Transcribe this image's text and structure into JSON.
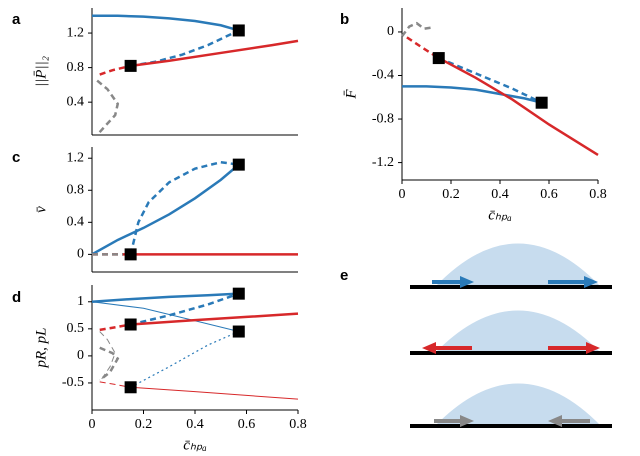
{
  "chart_data": [
    {
      "type": "line",
      "label": "a",
      "ylabel": "||P̄||₂",
      "xlim": [
        0,
        0.8
      ],
      "ylim": [
        0.02,
        1.49
      ],
      "yticks": [
        0.4,
        0.8,
        1.2
      ],
      "series": [
        {
          "color": "#2a7ab8",
          "dash": "solid",
          "width": 2.5,
          "x": [
            0,
            0.1,
            0.2,
            0.3,
            0.4,
            0.5,
            0.57
          ],
          "values": [
            1.4,
            1.4,
            1.39,
            1.37,
            1.34,
            1.29,
            1.23
          ]
        },
        {
          "color": "#2a7ab8",
          "dash": "dashed",
          "width": 2.5,
          "x": [
            0.15,
            0.25,
            0.35,
            0.45,
            0.57
          ],
          "values": [
            0.82,
            0.87,
            0.95,
            1.06,
            1.23
          ]
        },
        {
          "color": "#d7282a",
          "dash": "solid",
          "width": 2.5,
          "x": [
            0.15,
            0.3,
            0.5,
            0.7,
            0.8
          ],
          "values": [
            0.82,
            0.88,
            0.97,
            1.06,
            1.11
          ]
        },
        {
          "color": "#d7282a",
          "dash": "dashed",
          "width": 2.5,
          "x": [
            0.03,
            0.08,
            0.15
          ],
          "values": [
            0.72,
            0.77,
            0.82
          ]
        },
        {
          "color": "#888888",
          "dash": "dashed",
          "width": 2.5,
          "x": [
            0.02,
            0.06,
            0.1,
            0.09,
            0.05,
            0.02
          ],
          "values": [
            0.65,
            0.55,
            0.38,
            0.25,
            0.12,
            0.02
          ]
        }
      ],
      "markers": {
        "x": [
          0.15,
          0.57
        ],
        "values": [
          0.82,
          1.23
        ]
      }
    },
    {
      "type": "line",
      "label": "b",
      "ylabel": "F̄",
      "xlabel": "c̄ₕₚₐ",
      "xlim": [
        0,
        0.8
      ],
      "ylim": [
        -1.36,
        0.22
      ],
      "xticks": [
        0,
        0.2,
        0.4,
        0.6,
        0.8
      ],
      "yticks": [
        0,
        -0.4,
        -0.8,
        -1.2
      ],
      "series": [
        {
          "color": "#2a7ab8",
          "dash": "solid",
          "width": 2.5,
          "x": [
            0,
            0.1,
            0.2,
            0.3,
            0.4,
            0.5,
            0.57
          ],
          "values": [
            -0.5,
            -0.5,
            -0.51,
            -0.53,
            -0.57,
            -0.61,
            -0.65
          ]
        },
        {
          "color": "#2a7ab8",
          "dash": "dashed",
          "width": 2.5,
          "x": [
            0.15,
            0.3,
            0.45,
            0.57
          ],
          "values": [
            -0.24,
            -0.38,
            -0.52,
            -0.65
          ]
        },
        {
          "color": "#d7282a",
          "dash": "solid",
          "width": 2.5,
          "x": [
            0.15,
            0.3,
            0.45,
            0.6,
            0.8
          ],
          "values": [
            -0.24,
            -0.42,
            -0.62,
            -0.85,
            -1.13
          ]
        },
        {
          "color": "#d7282a",
          "dash": "dashed",
          "width": 2.5,
          "x": [
            0.02,
            0.08,
            0.15
          ],
          "values": [
            -0.05,
            -0.14,
            -0.24
          ]
        },
        {
          "color": "#888888",
          "dash": "dashed",
          "width": 2.5,
          "x": [
            0,
            0.03,
            0.06,
            0.09,
            0.12
          ],
          "values": [
            -0.04,
            0.05,
            0.08,
            0.03,
            0.04
          ]
        }
      ],
      "markers": {
        "x": [
          0.15,
          0.57
        ],
        "values": [
          -0.24,
          -0.65
        ]
      }
    },
    {
      "type": "line",
      "label": "c",
      "ylabel": "v̄",
      "xlim": [
        0,
        0.8
      ],
      "ylim": [
        -0.22,
        1.34
      ],
      "yticks": [
        0,
        0.4,
        0.8,
        1.2
      ],
      "series": [
        {
          "color": "#2a7ab8",
          "dash": "solid",
          "width": 2.5,
          "x": [
            0,
            0.1,
            0.2,
            0.3,
            0.4,
            0.5,
            0.57
          ],
          "values": [
            0,
            0.18,
            0.33,
            0.5,
            0.7,
            0.93,
            1.12
          ]
        },
        {
          "color": "#2a7ab8",
          "dash": "dashed",
          "width": 2.5,
          "x": [
            0.15,
            0.18,
            0.22,
            0.3,
            0.4,
            0.5,
            0.57
          ],
          "values": [
            0,
            0.4,
            0.65,
            0.9,
            1.07,
            1.15,
            1.12
          ]
        },
        {
          "color": "#d7282a",
          "dash": "solid",
          "width": 2.5,
          "x": [
            0.15,
            0.8
          ],
          "values": [
            0,
            0
          ]
        },
        {
          "color": "#d7282a",
          "dash": "dashed",
          "width": 2.5,
          "x": [
            0,
            0.15
          ],
          "values": [
            0,
            0
          ]
        },
        {
          "color": "#888888",
          "dash": "dashed",
          "width": 2.5,
          "x": [
            0,
            0.12
          ],
          "values": [
            0,
            0
          ]
        }
      ],
      "markers": {
        "x": [
          0.15,
          0.57
        ],
        "values": [
          0,
          1.12
        ]
      }
    },
    {
      "type": "line",
      "label": "d",
      "ylabel": "pR, pL",
      "xlabel": "c̄ₕₚₐ",
      "xlim": [
        0,
        0.8
      ],
      "ylim": [
        -1.0,
        1.31
      ],
      "xticks": [
        0,
        0.2,
        0.4,
        0.6,
        0.8
      ],
      "yticks": [
        1,
        0.5,
        0,
        -0.5
      ],
      "series": [
        {
          "color": "#2a7ab8",
          "dash": "solid",
          "width": 2.5,
          "x": [
            0,
            0.15,
            0.3,
            0.45,
            0.57
          ],
          "values": [
            1,
            1.05,
            1.09,
            1.12,
            1.15
          ]
        },
        {
          "color": "#2a7ab8",
          "dash": "solid",
          "width": 1,
          "x": [
            0,
            0.2,
            0.4,
            0.57
          ],
          "values": [
            1,
            0.88,
            0.65,
            0.45
          ]
        },
        {
          "color": "#2a7ab8",
          "dash": "dashed",
          "width": 2.5,
          "x": [
            0.15,
            0.3,
            0.45,
            0.57
          ],
          "values": [
            0.58,
            0.75,
            0.95,
            1.15
          ]
        },
        {
          "color": "#2a7ab8",
          "dash": "dotted",
          "width": 1.2,
          "x": [
            0.15,
            0.3,
            0.45,
            0.57
          ],
          "values": [
            -0.58,
            -0.2,
            0.2,
            0.45
          ]
        },
        {
          "color": "#d7282a",
          "dash": "solid",
          "width": 2.5,
          "x": [
            0.15,
            0.4,
            0.6,
            0.8
          ],
          "values": [
            0.58,
            0.66,
            0.72,
            0.78
          ]
        },
        {
          "color": "#d7282a",
          "dash": "solid",
          "width": 1,
          "x": [
            0.15,
            0.4,
            0.6,
            0.8
          ],
          "values": [
            -0.58,
            -0.66,
            -0.73,
            -0.8
          ]
        },
        {
          "color": "#d7282a",
          "dash": "dashed",
          "width": 2.5,
          "x": [
            0.03,
            0.08,
            0.15
          ],
          "values": [
            0.48,
            0.52,
            0.58
          ]
        },
        {
          "color": "#d7282a",
          "dash": "dashed",
          "width": 1,
          "x": [
            0.03,
            0.08,
            0.15
          ],
          "values": [
            -0.48,
            -0.52,
            -0.58
          ]
        },
        {
          "color": "#888888",
          "dash": "dashed",
          "width": 2.5,
          "x": [
            0.03,
            0.08,
            0.1,
            0.07,
            0.03
          ],
          "values": [
            0.15,
            0.05,
            -0.05,
            -0.3,
            -0.45
          ]
        },
        {
          "color": "#888888",
          "dash": "dashed",
          "width": 1,
          "x": [
            0.03,
            0.06,
            0.09,
            0.07,
            0.03
          ],
          "values": [
            0.45,
            0.3,
            0.05,
            -0.2,
            -0.48
          ]
        }
      ],
      "markers": {
        "x": [
          0.15,
          0.57,
          0.57,
          0.15
        ],
        "values": [
          0.58,
          1.15,
          0.45,
          -0.58
        ]
      }
    }
  ],
  "diagram": {
    "label": "e"
  }
}
